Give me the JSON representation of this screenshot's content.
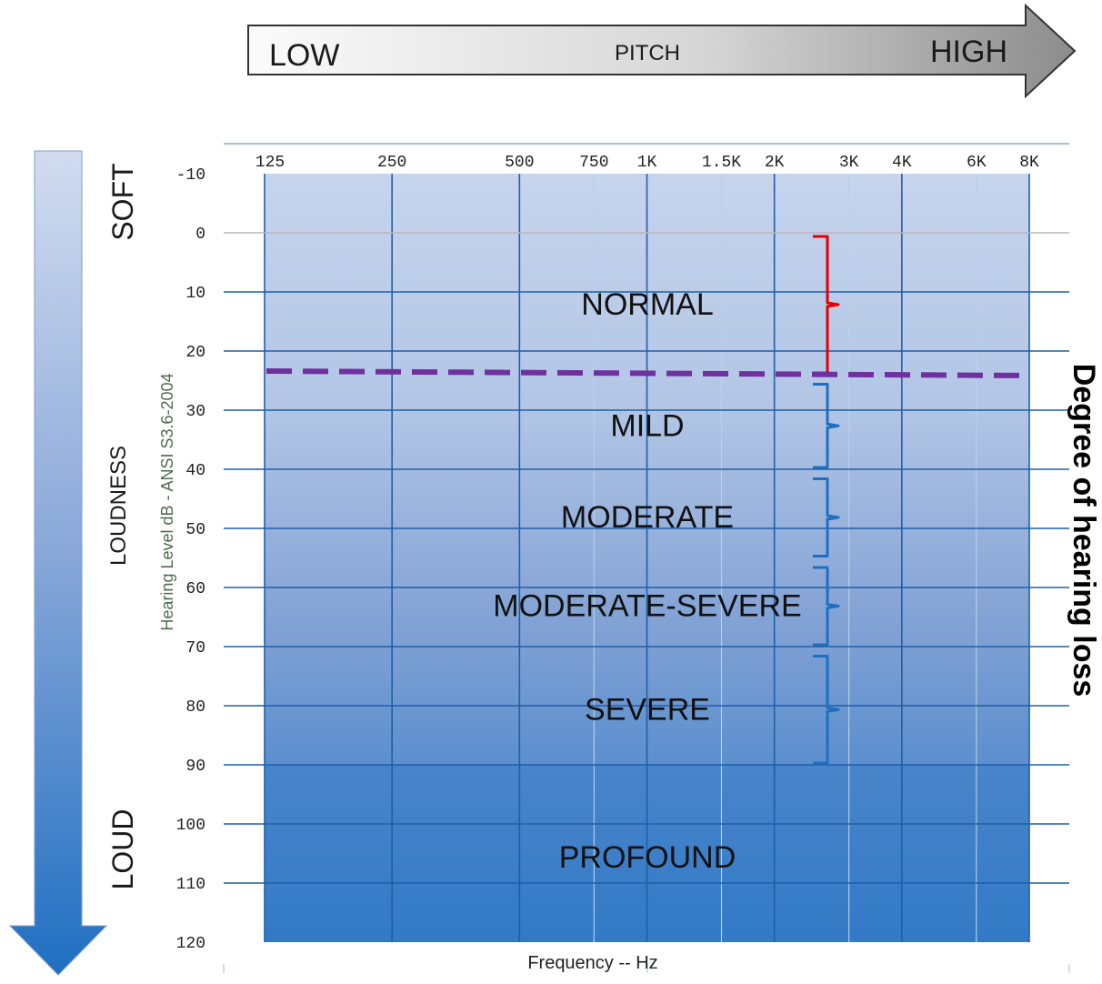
{
  "pitch_arrow": {
    "low": "LOW",
    "title": "PITCH",
    "high": "HIGH"
  },
  "loudness_arrow": {
    "soft": "SOFT",
    "title": "LOUDNESS",
    "loud": "LOUD"
  },
  "side_title": "Degree of hearing loss",
  "chart_data": {
    "type": "audiogram",
    "xlabel": "Frequency -- Hz",
    "ylabel": "Hearing Level dB - ANSI S3.6-2004",
    "x_scale": "log",
    "x_ticks": [
      {
        "hz": 125,
        "label": "125",
        "line": "major"
      },
      {
        "hz": 250,
        "label": "250",
        "line": "major"
      },
      {
        "hz": 500,
        "label": "500",
        "line": "major"
      },
      {
        "hz": 750,
        "label": "750",
        "line": "minor"
      },
      {
        "hz": 1000,
        "label": "1K",
        "line": "major"
      },
      {
        "hz": 1500,
        "label": "1.5K",
        "line": "minor"
      },
      {
        "hz": 2000,
        "label": "2K",
        "line": "major"
      },
      {
        "hz": 3000,
        "label": "3K",
        "line": "minor"
      },
      {
        "hz": 4000,
        "label": "4K",
        "line": "major"
      },
      {
        "hz": 6000,
        "label": "6K",
        "line": "minor"
      },
      {
        "hz": 8000,
        "label": "8K",
        "line": "major"
      }
    ],
    "ylim": [
      -10,
      120
    ],
    "y_ticks": [
      -10,
      0,
      10,
      20,
      30,
      40,
      50,
      60,
      70,
      80,
      90,
      100,
      110,
      120
    ],
    "threshold_line": {
      "db": 24,
      "color": "#7030a0",
      "style": "dashed"
    },
    "bands": [
      {
        "label": "NORMAL",
        "from_db": 0,
        "to_db": 24,
        "bracket_color": "#e00000"
      },
      {
        "label": "MILD",
        "from_db": 25,
        "to_db": 40,
        "bracket_color": "#1f6fc0"
      },
      {
        "label": "MODERATE",
        "from_db": 41,
        "to_db": 55,
        "bracket_color": "#1f6fc0"
      },
      {
        "label": "MODERATE-SEVERE",
        "from_db": 56,
        "to_db": 70,
        "bracket_color": "#1f6fc0"
      },
      {
        "label": "SEVERE",
        "from_db": 71,
        "to_db": 90,
        "bracket_color": "#1f6fc0"
      },
      {
        "label": "PROFOUND",
        "from_db": 91,
        "to_db": 120,
        "bracket_color": null
      }
    ],
    "colors": {
      "plot_top": "#c5d3ec",
      "plot_bottom": "#1d6ec0",
      "grid": "#1f5fa8",
      "frame_line": "#9fbfcf",
      "tick_text": "#222222",
      "axis_label": "#4d6b4d"
    }
  }
}
